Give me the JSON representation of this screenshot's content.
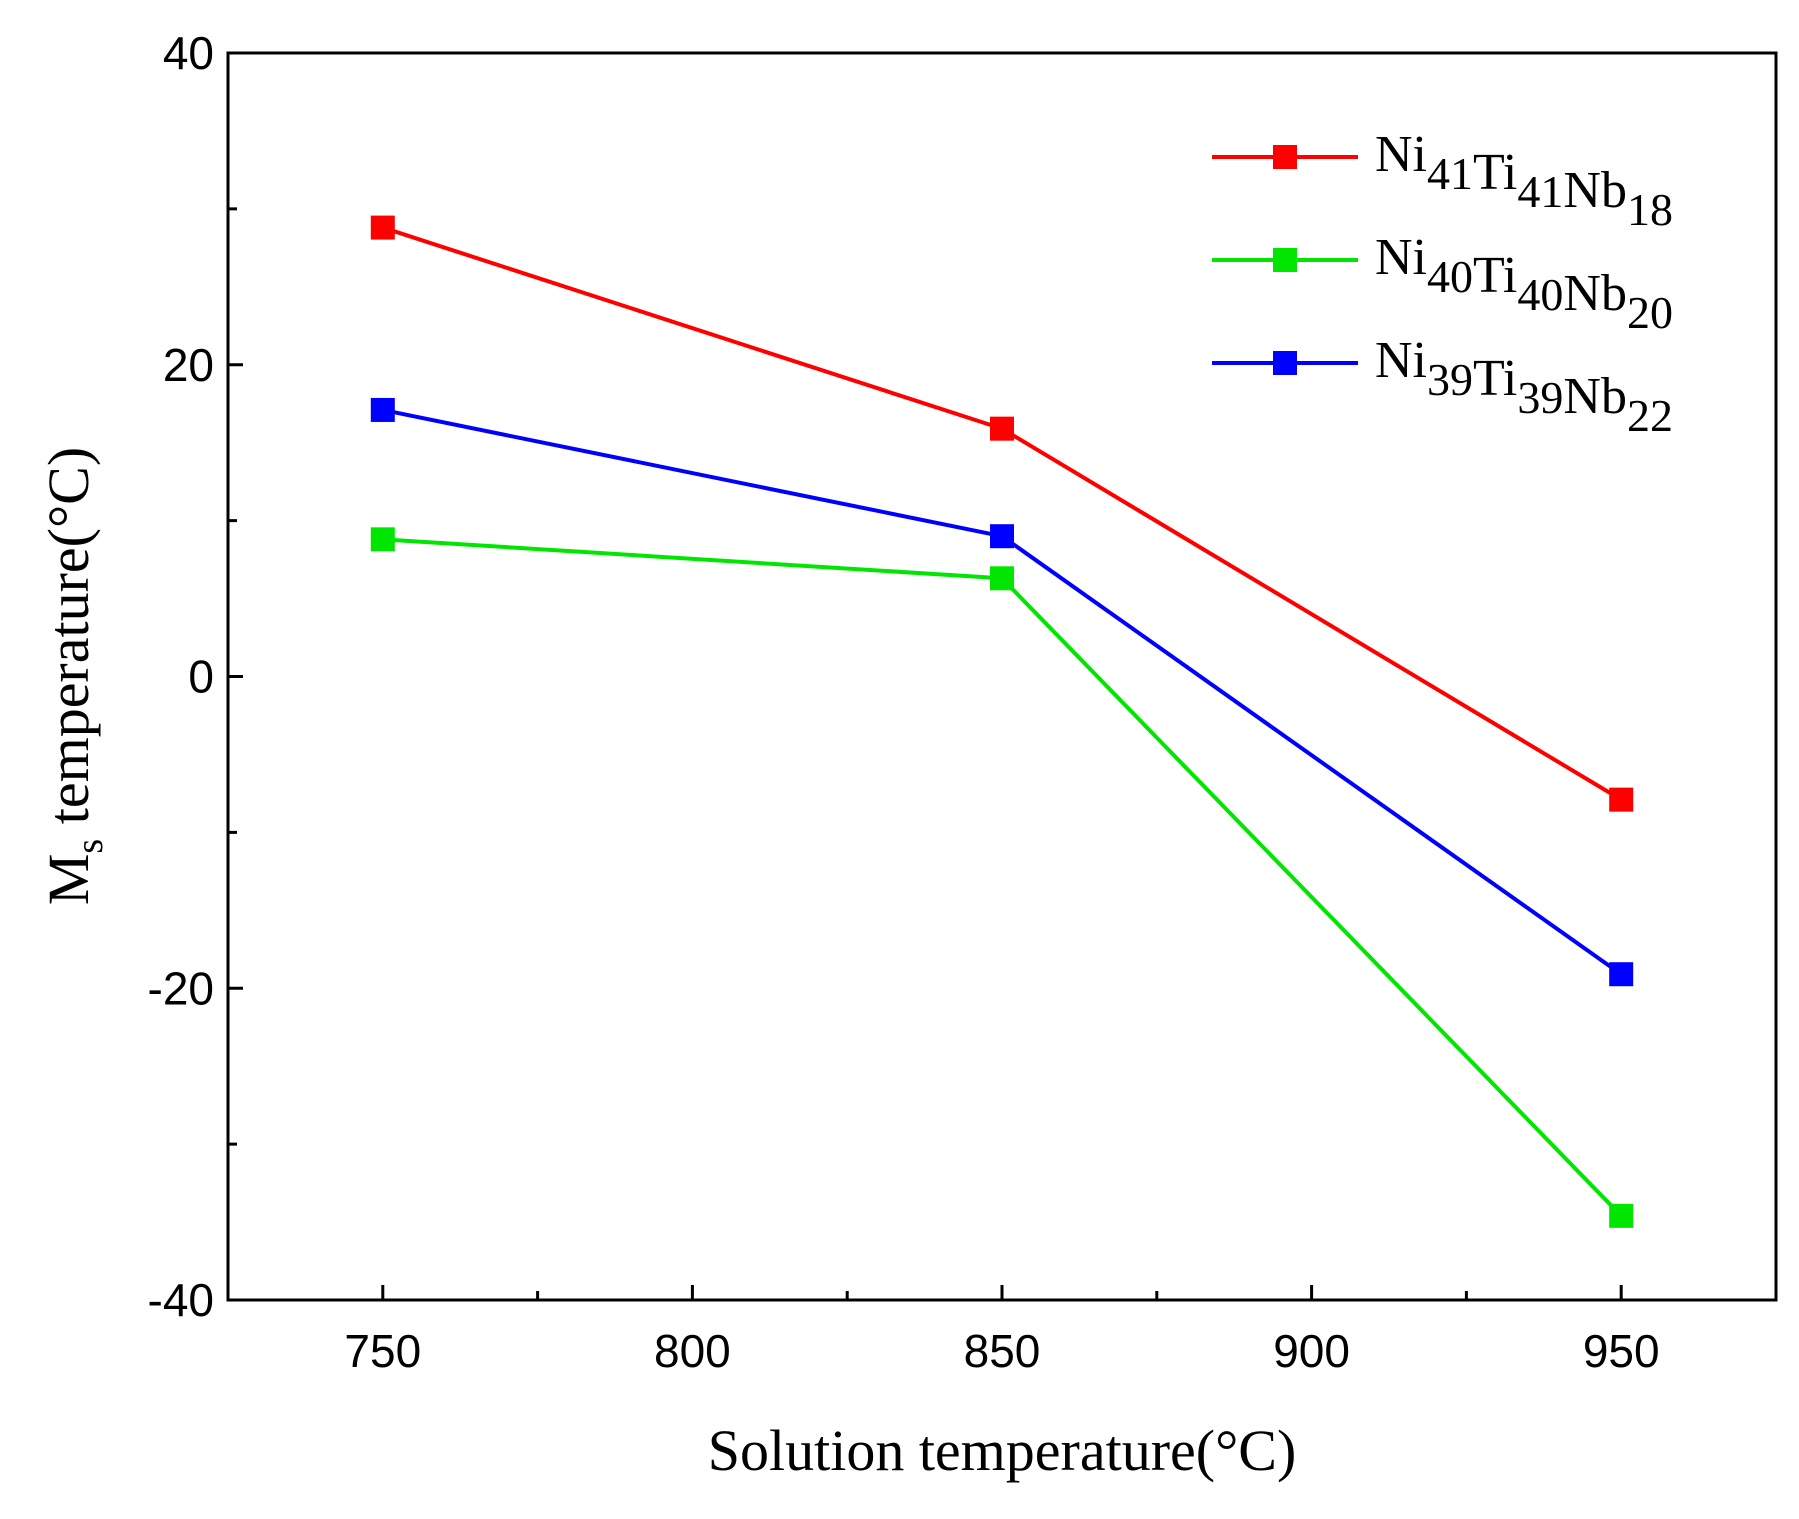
{
  "chart_data": {
    "type": "line",
    "title": "",
    "xlabel": "Solution temperature(°C)",
    "ylabel": {
      "main": "M",
      "sub": "s",
      "rest": " temperature(°C)"
    },
    "x": [
      750,
      850,
      950
    ],
    "xlim": [
      725,
      975
    ],
    "ylim": [
      -40,
      40
    ],
    "x_ticks": [
      750,
      800,
      850,
      900,
      950
    ],
    "x_tick_labels": [
      "750",
      "800",
      "850",
      "900",
      "950"
    ],
    "y_ticks": [
      -40,
      -20,
      0,
      20,
      40
    ],
    "y_tick_labels": [
      "-40",
      "-20",
      "0",
      "20",
      "40"
    ],
    "legend_position": "top-right",
    "series": [
      {
        "name": "Ni41Ti41Nb18",
        "label_parts": [
          [
            "Ni",
            "41"
          ],
          [
            "Ti",
            "41"
          ],
          [
            "Nb",
            "18"
          ]
        ],
        "color": "#ff0000",
        "values": [
          28.8,
          15.9,
          -7.9
        ]
      },
      {
        "name": "Ni40Ti40Nb20",
        "label_parts": [
          [
            "Ni",
            "40"
          ],
          [
            "Ti",
            "40"
          ],
          [
            "Nb",
            "20"
          ]
        ],
        "color": "#00e600",
        "values": [
          8.8,
          6.3,
          -34.6
        ]
      },
      {
        "name": "Ni39Ti39Nb22",
        "label_parts": [
          [
            "Ni",
            "39"
          ],
          [
            "Ti",
            "39"
          ],
          [
            "Nb",
            "22"
          ]
        ],
        "color": "#0000ff",
        "values": [
          17.1,
          9.0,
          -19.1
        ]
      }
    ]
  }
}
